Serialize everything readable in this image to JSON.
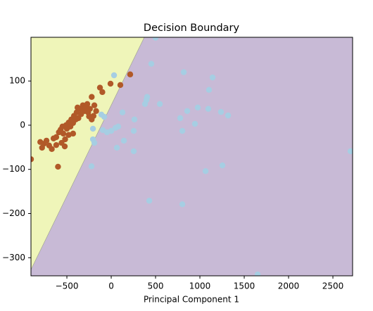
{
  "chart_data": {
    "type": "scatter",
    "title": "Decision Boundary",
    "x_label": "Principal Component 1",
    "xlim": [
      -905,
      2722
    ],
    "ylim": [
      -341,
      199
    ],
    "xticks": [
      {
        "value": -500,
        "label": "−500"
      },
      0,
      500,
      1000,
      1500,
      2000,
      2500
    ],
    "yticks": [
      {
        "value": -300,
        "label": "−300"
      },
      {
        "value": -200,
        "label": "−200"
      },
      {
        "value": -100,
        "label": "−100"
      },
      0,
      100
    ],
    "boundary": {
      "x": [
        -905,
        373
      ],
      "y": [
        -327,
        199
      ],
      "left_color": "#eff5b9",
      "right_color": "#c8bad6"
    },
    "series": [
      {
        "color": "#b15928",
        "x": [
          -905,
          -800,
          -780,
          -760,
          -730,
          -700,
          -670,
          -650,
          -620,
          -600,
          -590,
          -570,
          -550,
          -540,
          -520,
          -510,
          -500,
          -480,
          -460,
          -450,
          -430,
          -420,
          -400,
          -390,
          -370,
          -350,
          -340,
          -320,
          -300,
          -290,
          -270,
          -260,
          -240,
          -220,
          -200,
          -190,
          -170,
          -220,
          -127,
          -100,
          -8,
          103,
          214,
          -524,
          -430,
          -480,
          -560,
          -620,
          -380,
          -250
        ],
        "y": [
          -77,
          -38,
          -51,
          -42,
          -35,
          -46,
          -54,
          -30,
          -27,
          -94,
          -16,
          -10,
          -3,
          -19,
          -32,
          0,
          -8,
          6,
          -3,
          13,
          5,
          21,
          13,
          29,
          16,
          37,
          25,
          45,
          32,
          41,
          48,
          29,
          37,
          13,
          21,
          45,
          32,
          64,
          85,
          75,
          94,
          91,
          115,
          -48,
          -19,
          -22,
          -40,
          -45,
          40,
          20
        ]
      },
      {
        "color": "#a6cee3",
        "x": [
          32,
          452,
          818,
          1143,
          1103,
          397,
          405,
          381,
          548,
          778,
          857,
          944,
          976,
          1095,
          1238,
          1318,
          -111,
          -79,
          -95,
          -48,
          0,
          48,
          79,
          127,
          -206,
          -206,
          -190,
          64,
          143,
          254,
          262,
          254,
          802,
          1064,
          1254,
          429,
          802,
          -222,
          1651,
          2699,
          500
        ],
        "y": [
          113,
          139,
          120,
          108,
          80,
          57,
          64,
          48,
          48,
          16,
          32,
          3,
          40,
          37,
          30,
          22,
          24,
          19,
          -11,
          -16,
          -13,
          -6,
          -3,
          29,
          -8,
          -32,
          -40,
          -51,
          -35,
          -59,
          13,
          -13,
          -13,
          -104,
          -91,
          -171,
          -179,
          -93,
          -338,
          -59,
          198
        ]
      }
    ]
  }
}
